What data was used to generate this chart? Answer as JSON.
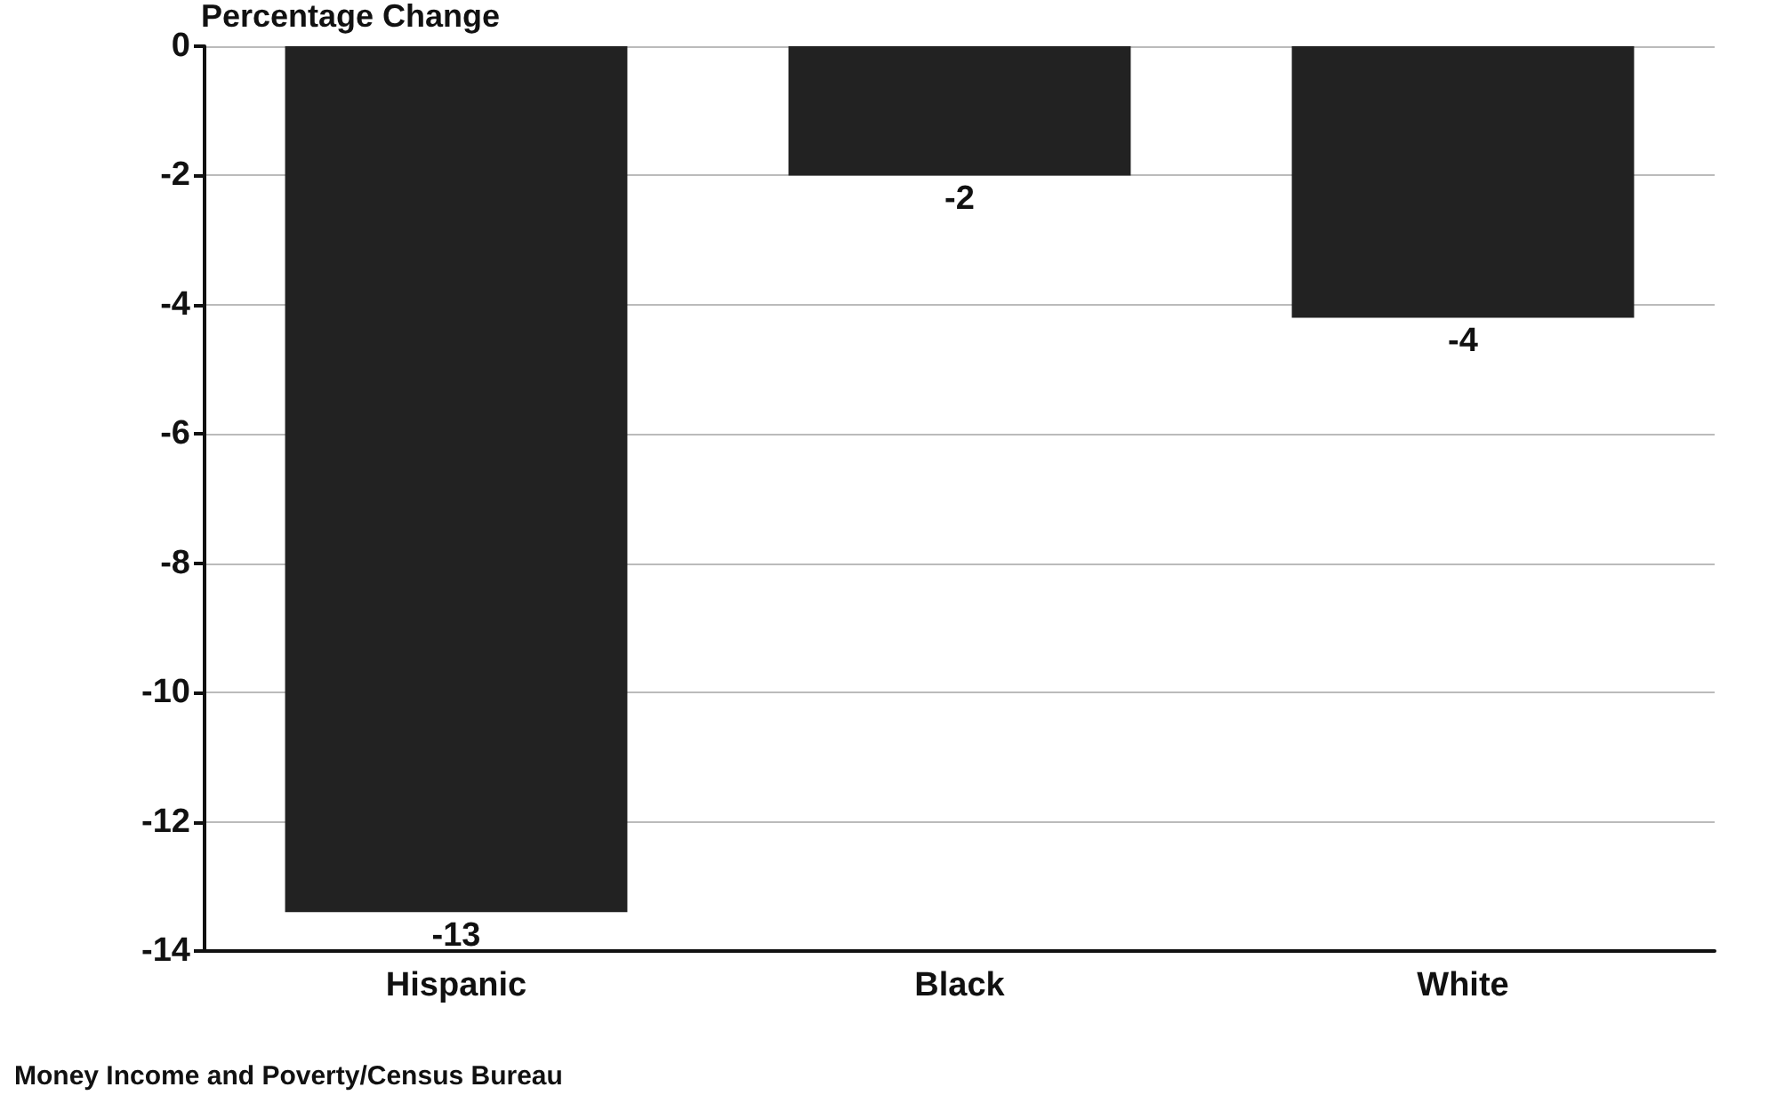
{
  "chart_data": {
    "type": "bar",
    "ylabel": "Percentage Change",
    "categories": [
      "Hispanic",
      "Black",
      "White"
    ],
    "values": [
      -13.4,
      -2,
      -4.2
    ],
    "value_labels": [
      "-13",
      "-2",
      "-4"
    ],
    "color": "#222222",
    "ylim": [
      -14,
      0
    ],
    "yticks": [
      -14,
      -12,
      -10,
      -8,
      -6,
      -4,
      -2,
      0
    ],
    "grid": "y",
    "annotations": [
      "Money Income and Poverty/Census Bureau"
    ]
  }
}
